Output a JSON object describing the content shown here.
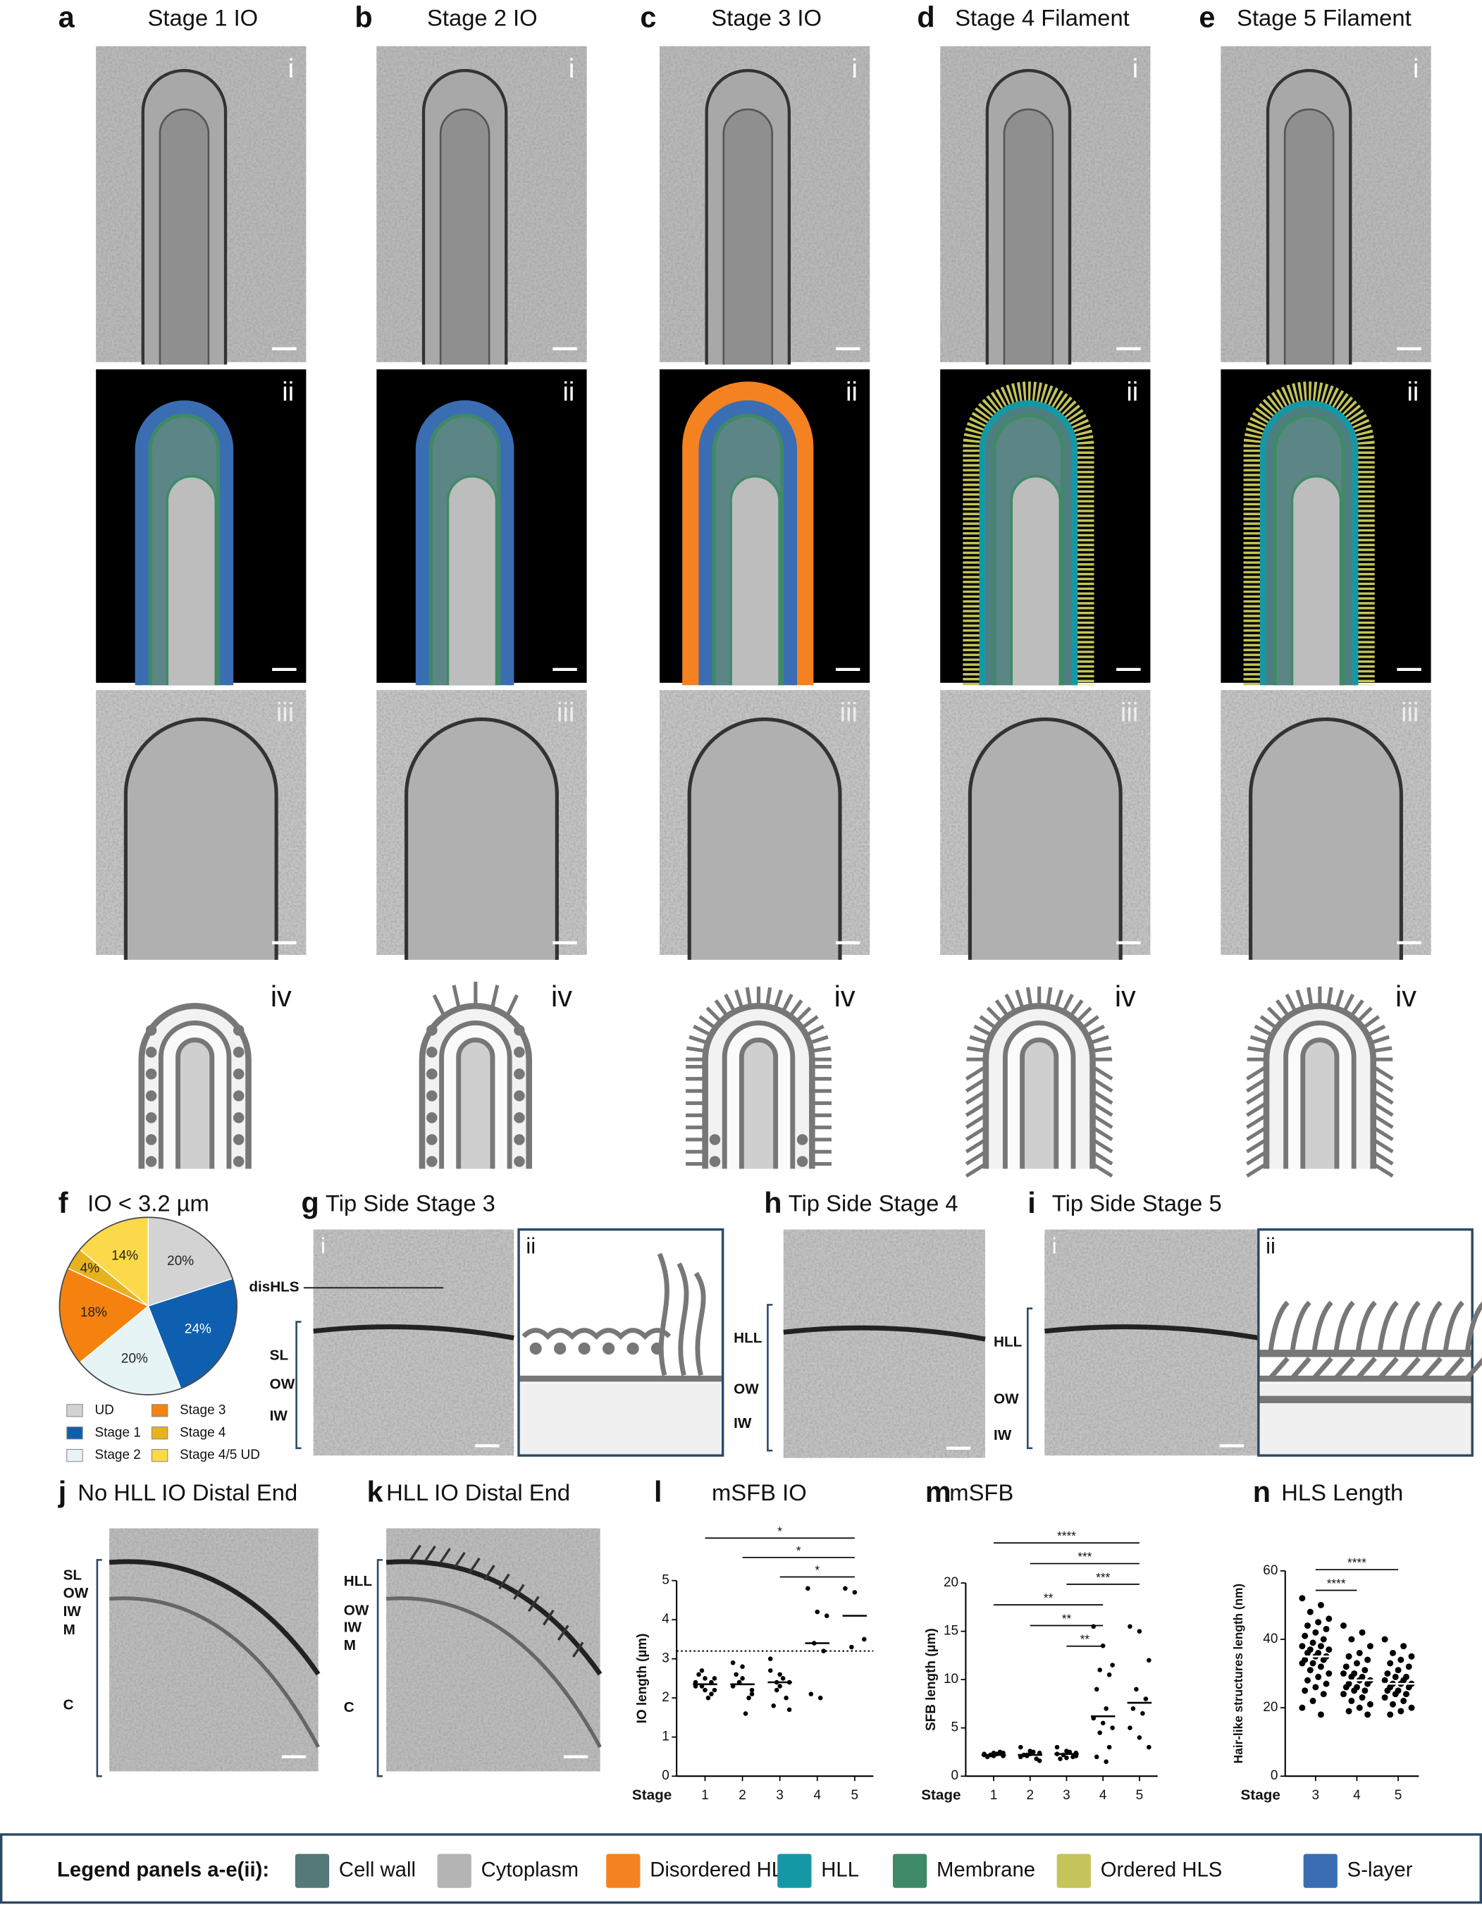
{
  "panels": [
    {
      "letter": "a",
      "title": "Stage 1 IO"
    },
    {
      "letter": "b",
      "title": "Stage 2 IO"
    },
    {
      "letter": "c",
      "title": "Stage 3 IO"
    },
    {
      "letter": "d",
      "title": "Stage 4 Filament"
    },
    {
      "letter": "e",
      "title": "Stage 5 Filament"
    }
  ],
  "row_labels": [
    "i",
    "ii",
    "iii",
    "iv"
  ],
  "tip_panels": [
    {
      "letter": "g",
      "title": "Tip Side Stage 3",
      "sub": [
        "i",
        "ii"
      ],
      "labels": [
        "disHLS",
        "SL",
        "OW",
        "IW"
      ]
    },
    {
      "letter": "h",
      "title": "Tip Side Stage 4",
      "labels": [
        "HLL",
        "OW",
        "IW"
      ]
    },
    {
      "letter": "i",
      "title": "Tip Side Stage 5",
      "sub": [
        "i",
        "ii"
      ],
      "labels": [
        "HLL",
        "OW",
        "IW"
      ]
    }
  ],
  "end_panels": [
    {
      "letter": "j",
      "title": "No HLL IO Distal End",
      "labels": [
        "SL",
        "OW",
        "IW",
        "M",
        "C"
      ]
    },
    {
      "letter": "k",
      "title": "HLL IO Distal End",
      "labels": [
        "HLL",
        "OW",
        "IW",
        "M",
        "C"
      ]
    }
  ],
  "chart_data": [
    {
      "letter": "f",
      "type": "pie",
      "title": "IO < 3.2 µm",
      "categories": [
        "UD",
        "Stage 1",
        "Stage 2",
        "Stage 3",
        "Stage 4",
        "Stage 4/5 UD"
      ],
      "values": [
        20,
        24,
        20,
        18,
        4,
        14
      ],
      "value_labels": [
        "20%",
        "24%",
        "20%",
        "18%",
        "4%",
        "14%"
      ],
      "colors": [
        "#d3d3d3",
        "#0f5fb0",
        "#e6f4f6",
        "#f5820f",
        "#e8b21f",
        "#fbd94a"
      ]
    },
    {
      "letter": "l",
      "type": "scatter",
      "title": "mSFB IO",
      "xlabel": "Stage",
      "ylabel": "IO length (µm)",
      "xlim": [
        0.5,
        5.5
      ],
      "xticks": [
        1,
        2,
        3,
        4,
        5
      ],
      "ylim": [
        0,
        5
      ],
      "yticks": [
        0,
        1,
        2,
        3,
        4,
        5
      ],
      "threshold": 3.2,
      "groups": [
        {
          "x": 1,
          "values": [
            2.4,
            2.2,
            2.5,
            2.3,
            2.1,
            2.6,
            2.0,
            2.3,
            2.5,
            2.2,
            2.7,
            2.4
          ],
          "mean": 2.35
        },
        {
          "x": 2,
          "values": [
            2.9,
            2.5,
            2.2,
            2.4,
            2.0,
            2.6,
            1.6,
            2.3,
            2.8,
            2.1,
            2.4
          ],
          "mean": 2.35
        },
        {
          "x": 3,
          "values": [
            3.0,
            2.6,
            2.4,
            2.2,
            2.0,
            1.8,
            2.5,
            2.7,
            2.3,
            1.7,
            2.4
          ],
          "mean": 2.4
        },
        {
          "x": 4,
          "values": [
            4.8,
            4.2,
            4.1,
            3.4,
            3.2,
            2.1,
            2.0
          ],
          "mean": 3.4
        },
        {
          "x": 5,
          "values": [
            4.8,
            4.7,
            3.5,
            3.3
          ],
          "mean": 4.1
        }
      ],
      "significance": [
        {
          "x": [
            1,
            5
          ],
          "label": "*"
        },
        {
          "x": [
            2,
            5
          ],
          "label": "*"
        },
        {
          "x": [
            3,
            5
          ],
          "label": "*"
        }
      ]
    },
    {
      "letter": "m",
      "type": "scatter",
      "title": "mSFB",
      "xlabel": "Stage",
      "ylabel": "SFB length (µm)",
      "xlim": [
        0.5,
        5.5
      ],
      "xticks": [
        1,
        2,
        3,
        4,
        5
      ],
      "ylim": [
        0,
        20
      ],
      "yticks": [
        0,
        5,
        10,
        15,
        20
      ],
      "groups": [
        {
          "x": 1,
          "values": [
            2.3,
            2.1,
            2.4,
            2.2,
            2.5,
            2.0,
            2.3,
            2.2,
            2.4,
            2.1,
            2.2
          ],
          "mean": 2.2
        },
        {
          "x": 2,
          "values": [
            3.0,
            2.6,
            2.4,
            2.1,
            1.8,
            2.2,
            2.5,
            2.0,
            2.3,
            1.6,
            2.2
          ],
          "mean": 2.2
        },
        {
          "x": 3,
          "values": [
            3.0,
            2.6,
            2.4,
            2.2,
            2.0,
            1.8,
            2.5,
            2.3,
            1.9,
            2.1
          ],
          "mean": 2.3
        },
        {
          "x": 4,
          "values": [
            15.5,
            13.5,
            11.5,
            11,
            10.5,
            9,
            7,
            6,
            5.5,
            5,
            4.5,
            3,
            2,
            1.5
          ],
          "mean": 6.2
        },
        {
          "x": 5,
          "values": [
            15.5,
            15,
            12,
            9,
            8,
            7,
            6.5,
            5,
            4,
            3
          ],
          "mean": 7.6
        }
      ],
      "significance": [
        {
          "x": [
            1,
            5
          ],
          "label": "****"
        },
        {
          "x": [
            2,
            5
          ],
          "label": "***"
        },
        {
          "x": [
            3,
            5
          ],
          "label": "***"
        },
        {
          "x": [
            1,
            4
          ],
          "label": "**"
        },
        {
          "x": [
            2,
            4
          ],
          "label": "**"
        },
        {
          "x": [
            3,
            4
          ],
          "label": "**"
        }
      ]
    },
    {
      "letter": "n",
      "type": "scatter",
      "title": "HLS Length",
      "xlabel": "Stage",
      "ylabel": "Hair-like structures length (nm)",
      "xlim": [
        2.5,
        5.5
      ],
      "xticks": [
        3,
        4,
        5
      ],
      "ylim": [
        0,
        60
      ],
      "yticks": [
        0,
        20,
        40,
        60
      ],
      "groups": [
        {
          "x": 3,
          "values": [
            52,
            50,
            48,
            46,
            45,
            44,
            43,
            42,
            41,
            40,
            39,
            38,
            38,
            37,
            37,
            36,
            36,
            35,
            35,
            34,
            34,
            33,
            33,
            32,
            31,
            30,
            29,
            28,
            27,
            26,
            25,
            24,
            22,
            20,
            18
          ],
          "mean": 35
        },
        {
          "x": 4,
          "values": [
            44,
            42,
            40,
            38,
            36,
            35,
            34,
            33,
            32,
            31,
            30,
            30,
            29,
            29,
            28,
            28,
            27,
            27,
            26,
            26,
            25,
            25,
            24,
            23,
            22,
            21,
            20,
            19,
            18
          ],
          "mean": 28
        },
        {
          "x": 5,
          "values": [
            40,
            38,
            36,
            35,
            34,
            33,
            32,
            31,
            30,
            29,
            29,
            28,
            28,
            27,
            27,
            27,
            26,
            26,
            25,
            25,
            24,
            24,
            23,
            22,
            21,
            20,
            19,
            18
          ],
          "mean": 27
        }
      ],
      "significance": [
        {
          "x": [
            3,
            5
          ],
          "label": "****"
        },
        {
          "x": [
            3,
            4
          ],
          "label": "****"
        }
      ]
    }
  ],
  "legend": {
    "title": "Legend panels a-e(ii):",
    "items": [
      {
        "name": "Cell wall",
        "color": "#557878"
      },
      {
        "name": "Cytoplasm",
        "color": "#b4b4b4"
      },
      {
        "name": "Disordered HLS",
        "color": "#f58220"
      },
      {
        "name": "HLL",
        "color": "#1598a6"
      },
      {
        "name": "Membrane",
        "color": "#3e8a66"
      },
      {
        "name": "Ordered HLS",
        "color": "#c4c45a"
      },
      {
        "name": "S-layer",
        "color": "#3b6db3"
      }
    ]
  }
}
